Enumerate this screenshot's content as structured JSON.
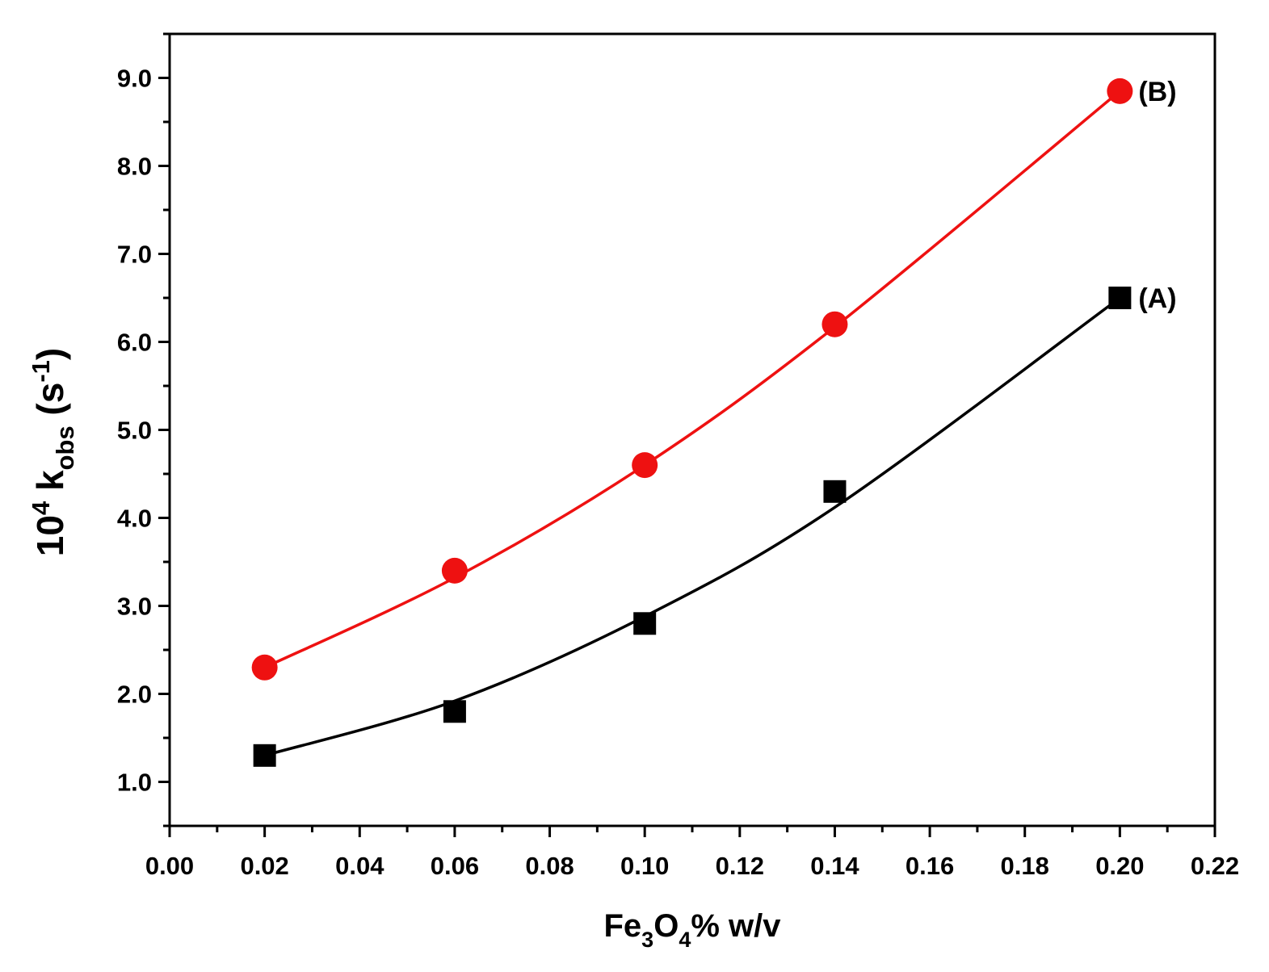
{
  "chart_data": {
    "type": "scatter",
    "xlabel": {
      "base": "Fe",
      "sub1": "3",
      "mid": "O",
      "sub2": "4",
      "rest": "% w/v"
    },
    "ylabel": {
      "base": "10",
      "sup": "4",
      "k": " k",
      "sub": "obs",
      "unit_open": " (s",
      "unit_sup": "-1",
      "unit_close": ")"
    },
    "xlim": [
      0.0,
      0.22
    ],
    "ylim": [
      0.5,
      9.5
    ],
    "xticks": [
      0.0,
      0.02,
      0.04,
      0.06,
      0.08,
      0.1,
      0.12,
      0.14,
      0.16,
      0.18,
      0.2,
      0.22
    ],
    "xtick_labels": [
      "0.00",
      "0.02",
      "0.04",
      "0.06",
      "0.08",
      "0.10",
      "0.12",
      "0.14",
      "0.16",
      "0.18",
      "0.20",
      "0.22"
    ],
    "yticks": [
      1.0,
      2.0,
      3.0,
      4.0,
      5.0,
      6.0,
      7.0,
      8.0,
      9.0
    ],
    "ytick_labels": [
      "1.0",
      "2.0",
      "3.0",
      "4.0",
      "5.0",
      "6.0",
      "7.0",
      "8.0",
      "9.0"
    ],
    "grid": false,
    "legend": "none",
    "series": [
      {
        "label": "(A)",
        "marker": "square",
        "color": "#000000",
        "x": [
          0.02,
          0.06,
          0.1,
          0.14,
          0.2
        ],
        "y": [
          1.3,
          1.8,
          2.8,
          4.3,
          6.5
        ],
        "fit": [
          0.02,
          1.3,
          0.06,
          1.92,
          0.1,
          2.88,
          0.14,
          4.12,
          0.2,
          6.5
        ]
      },
      {
        "label": "(B)",
        "marker": "circle",
        "color": "#ee1111",
        "x": [
          0.02,
          0.06,
          0.1,
          0.14,
          0.2
        ],
        "y": [
          2.3,
          3.4,
          4.6,
          6.2,
          8.85
        ],
        "fit": [
          0.02,
          2.3,
          0.06,
          3.32,
          0.1,
          4.6,
          0.14,
          6.17,
          0.2,
          8.85
        ]
      }
    ]
  }
}
